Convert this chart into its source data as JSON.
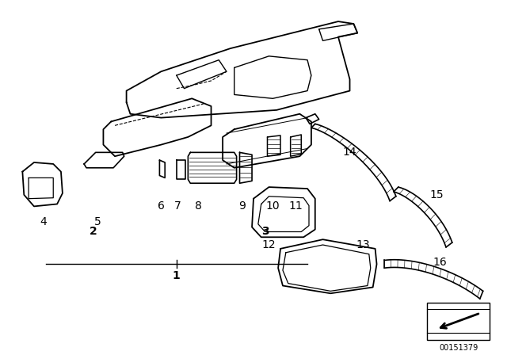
{
  "bg_color": "#ffffff",
  "line_color": "#000000",
  "fig_width": 6.4,
  "fig_height": 4.48,
  "dpi": 100,
  "part_number": "00151379",
  "label_fontsize": 10
}
